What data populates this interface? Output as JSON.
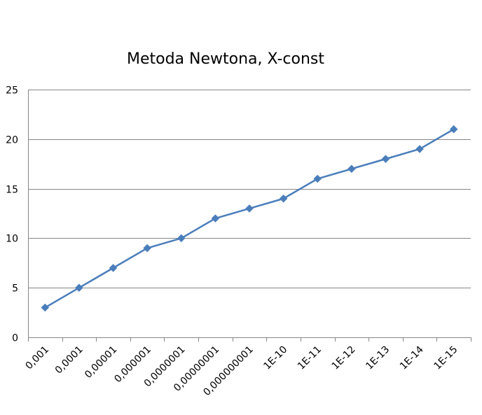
{
  "chart_data": {
    "type": "line",
    "title": "Metoda Newtona, X-const",
    "xlabel": "",
    "ylabel": "",
    "categories": [
      "0,001",
      "0,0001",
      "0,00001",
      "0,000001",
      "0,0000001",
      "0,00000001",
      "0,000000001",
      "1E-10",
      "1E-11",
      "1E-12",
      "1E-13",
      "1E-14",
      "1E-15"
    ],
    "series": [
      {
        "name": "",
        "values": [
          3,
          5,
          7,
          9,
          10,
          12,
          13,
          14,
          16,
          17,
          18,
          19,
          21
        ],
        "color": "#4a7ebb",
        "marker": "diamond"
      }
    ],
    "ylim": [
      0,
      25
    ],
    "yticks": [
      "0",
      "5",
      "10",
      "15",
      "20",
      "25"
    ],
    "grid": "horizontal",
    "legend": "none"
  }
}
